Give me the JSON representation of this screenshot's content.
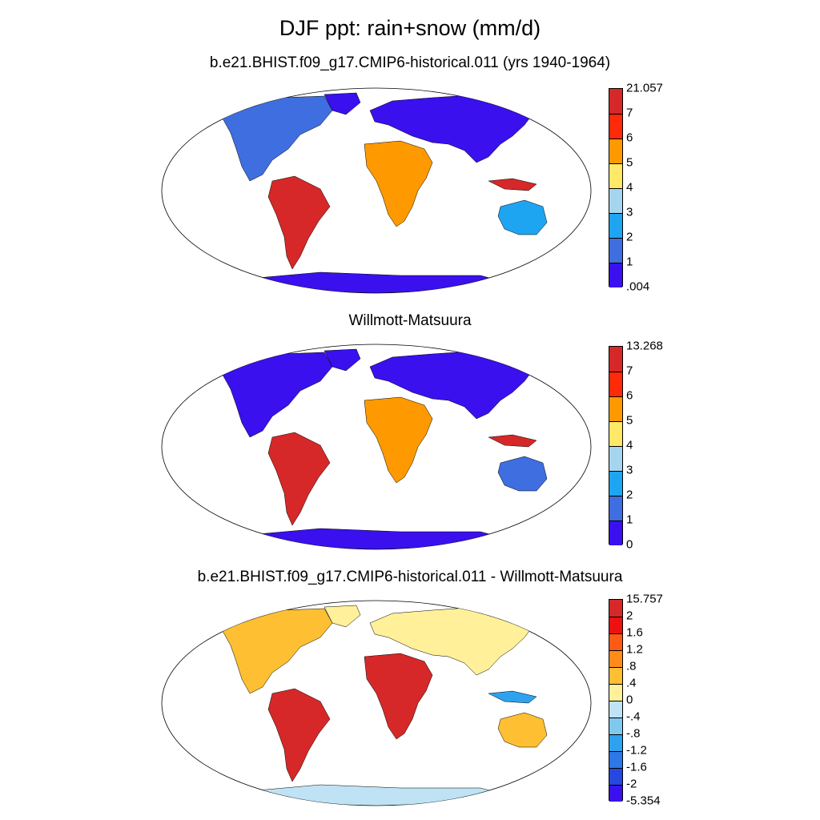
{
  "title": "DJF ppt: rain+snow (mm/d)",
  "panels": [
    {
      "title": "b.e21.BHIST.f09_g17.CMIP6-historical.011 (yrs 1940-1964)",
      "colorbar": {
        "labels": [
          "21.057",
          "7",
          "6",
          "5",
          "4",
          "3",
          "2",
          "1",
          ".004"
        ],
        "colors": [
          "#d62828",
          "#ff2a0a",
          "#ff9900",
          "#ffe866",
          "#a6d5ef",
          "#1ea5f2",
          "#3f6ee0",
          "#3a10ee"
        ]
      }
    },
    {
      "title": "Willmott-Matsuura",
      "colorbar": {
        "labels": [
          "13.268",
          "7",
          "6",
          "5",
          "4",
          "3",
          "2",
          "1",
          "0"
        ],
        "colors": [
          "#d62828",
          "#ff2a0a",
          "#ff9900",
          "#ffe866",
          "#a6d5ef",
          "#1ea5f2",
          "#3f6ee0",
          "#3a10ee"
        ]
      }
    },
    {
      "title": "b.e21.BHIST.f09_g17.CMIP6-historical.011 - Willmott-Matsuura",
      "colorbar": {
        "labels": [
          "15.757",
          "2",
          "1.6",
          "1.2",
          ".8",
          ".4",
          "0",
          "-.4",
          "-.8",
          "-1.2",
          "-1.6",
          "-2",
          "-5.354"
        ],
        "colors": [
          "#d62828",
          "#ee1111",
          "#ff5a14",
          "#ff8c1a",
          "#ffbf33",
          "#fff099",
          "#bfe3f5",
          "#7fc8ee",
          "#2fa2ef",
          "#2c78e6",
          "#2448e0",
          "#3a10ee"
        ]
      }
    }
  ],
  "map_colors": {
    "ocean": "#ffffff",
    "dry": "#3a10ee",
    "low": "#3f6ee0",
    "mid": "#1ea5f2",
    "moist": "#ffe866",
    "wet": "#ff9900",
    "verywet": "#d62828",
    "diff_pos_small": "#fff099",
    "diff_pos_mid": "#ffbf33",
    "diff_pos_large": "#d62828",
    "diff_neg_small": "#bfe3f5",
    "diff_neg_mid": "#2fa2ef",
    "diff_neg_large": "#3a10ee"
  }
}
